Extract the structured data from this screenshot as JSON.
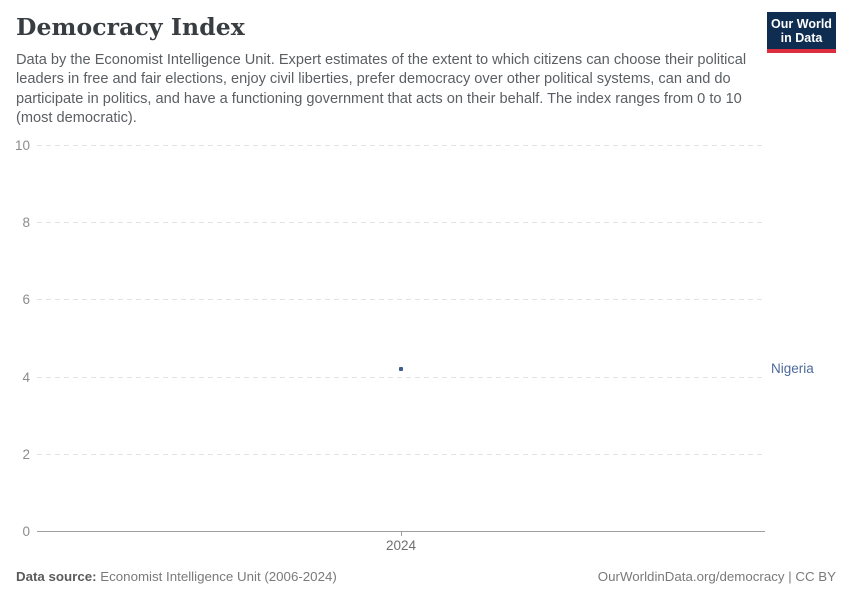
{
  "header": {
    "title": "Democracy Index",
    "subtitle": "Data by the Economist Intelligence Unit. Expert estimates of the extent to which citizens can choose their political leaders in free and fair elections, enjoy civil liberties, prefer democracy over other political systems, can and do participate in politics, and have a functioning government that acts on their behalf. The index ranges from 0 to 10 (most democratic)."
  },
  "logo": {
    "line1": "Our World",
    "line2": "in Data",
    "bg_color": "#0e2d51",
    "accent_color": "#dc2e3e"
  },
  "chart_data": {
    "type": "scatter",
    "title": "Democracy Index",
    "xlabel": "",
    "ylabel": "",
    "ylim": [
      0,
      10
    ],
    "y_ticks": [
      0,
      2,
      4,
      6,
      8,
      10
    ],
    "x_ticks": [
      2024
    ],
    "grid": "horizontal-dashed",
    "legend_position": "right-of-point",
    "series": [
      {
        "name": "Nigeria",
        "color": "#3e5c8e",
        "label_color": "#4c6a9c",
        "points": [
          {
            "x": 2024,
            "y": 4.2
          }
        ]
      }
    ]
  },
  "footer": {
    "source_label": "Data source:",
    "source_value": "Economist Intelligence Unit (2006-2024)",
    "credit": "OurWorldinData.org/democracy | CC BY"
  }
}
